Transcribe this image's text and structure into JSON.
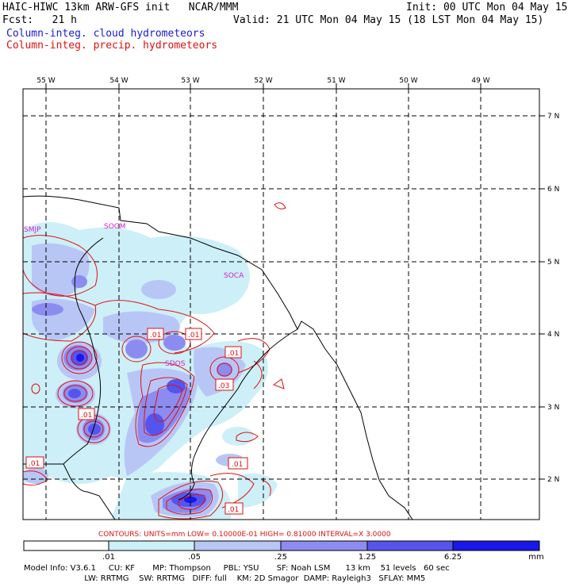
{
  "header": {
    "title_left": "HAIC-HIWC 13km ARW-GFS init   NCAR/MMM",
    "init": "Init: 00 UTC Mon 04 May 15",
    "fcst": "Fcst:   21 h",
    "valid": "Valid: 21 UTC Mon 04 May 15 (18 LST Mon 04 May 15)",
    "field_cloud": "Column-integ. cloud hydrometeors",
    "field_precip": "Column-integ. precip. hydrometeors"
  },
  "axes": {
    "lon_labels": [
      "55 W",
      "54 W",
      "53 W",
      "52 W",
      "51 W",
      "50 W",
      "49 W"
    ],
    "lat_labels": [
      "7 N",
      "6 N",
      "5 N",
      "4 N",
      "3 N",
      "2 N"
    ]
  },
  "stations": [
    "SMJP",
    "SOGM",
    "SOCA",
    "SDOS"
  ],
  "contour_labels": [
    ".01",
    ".01",
    ".01",
    ".03",
    ".01",
    ".01",
    ".01",
    ".01"
  ],
  "contour_info": "CONTOURS:  UNITS=mm   LOW= 0.10000E-01   HIGH= 0.81000      INTERVAL=X   3.0000",
  "colorbar": {
    "ticks": [
      ".01",
      ".05",
      ".25",
      "1.25",
      "6.25"
    ],
    "unit": "mm",
    "colors": [
      "#ffffff",
      "#cdeff7",
      "#b8c6f6",
      "#8c8cf0",
      "#5555ee",
      "#1818e8"
    ]
  },
  "model_info": {
    "line1": "Model Info: V3.6.1     CU: KF       MP: Thompson     PBL: YSU       SF: Noah LSM      13 km    51 levels   60 sec",
    "line2": "                        LW: RRTMG    SW: RRTMG   DIFF: full    KM: 2D Smagor  DAMP: Rayleigh3   SFLAY: MM5"
  }
}
